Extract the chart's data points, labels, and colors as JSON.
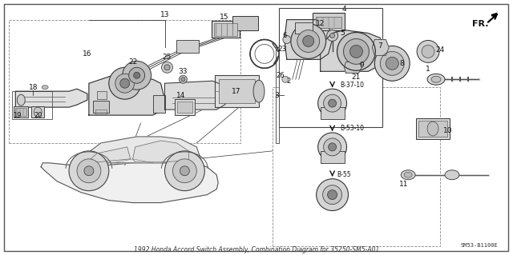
{
  "title": "1992 Honda Accord Switch Assembly, Combination Diagram for 35250-SM5-A01",
  "bg": "#ffffff",
  "fg": "#1a1a1a",
  "gray1": "#cccccc",
  "gray2": "#888888",
  "gray3": "#444444",
  "diagram_code": "SM53-B1100E",
  "fr_text": "FR.",
  "figsize": [
    6.4,
    3.19
  ],
  "dpi": 100
}
